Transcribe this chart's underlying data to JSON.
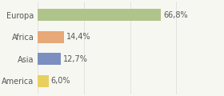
{
  "categories": [
    "Europa",
    "Africa",
    "Asia",
    "America"
  ],
  "values": [
    66.8,
    14.4,
    12.7,
    6.0
  ],
  "labels": [
    "66,8%",
    "14,4%",
    "12,7%",
    "6,0%"
  ],
  "bar_colors": [
    "#afc48a",
    "#e8a878",
    "#7b8fc0",
    "#e8d060"
  ],
  "background_color": "#f7f7f2",
  "xlim": [
    0,
    100
  ],
  "bar_height": 0.55,
  "label_fontsize": 7.0,
  "tick_fontsize": 7.0,
  "grid_color": "#d8d8d8",
  "grid_xticks": [
    0,
    25,
    50,
    75,
    100
  ]
}
